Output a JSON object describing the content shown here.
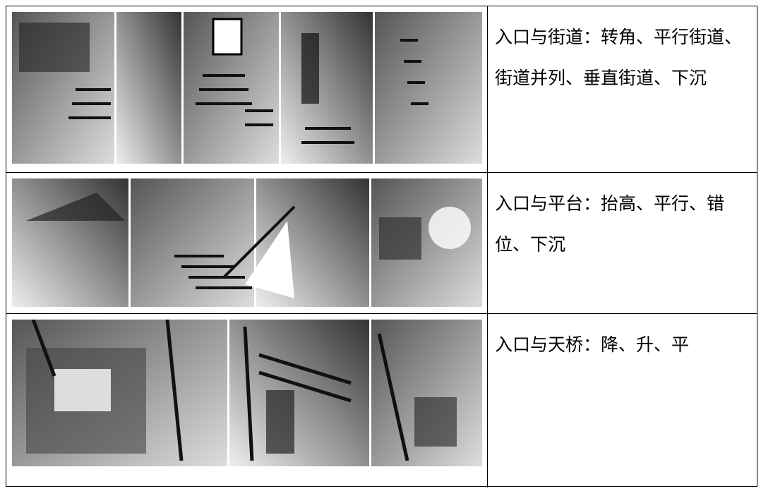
{
  "table": {
    "rows": [
      {
        "text": "入口与街道：转角、平行街道、街道并列、垂直街道、下沉"
      },
      {
        "text": "入口与平台：抬高、平行、错位、下沉"
      },
      {
        "text": "入口与天桥：降、升、平"
      }
    ]
  }
}
